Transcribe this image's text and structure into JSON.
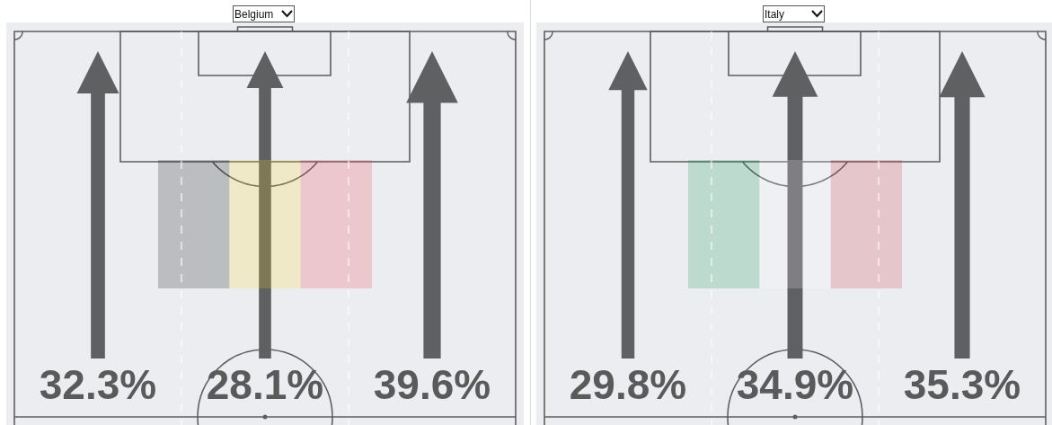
{
  "chart_data": [
    {
      "type": "other",
      "title": "Belgium",
      "categories": [
        null,
        null,
        null
      ],
      "values": [
        32.3,
        28.1,
        39.6
      ],
      "value_labels": [
        "32.3%",
        "28.1%",
        "39.6%"
      ],
      "color": "#5f6062"
    },
    {
      "type": "other",
      "title": "Italy",
      "categories": [
        null,
        null,
        null
      ],
      "values": [
        29.8,
        34.9,
        35.3
      ],
      "value_labels": [
        "29.8%",
        "34.9%",
        "35.3%"
      ],
      "color": "#5f6062"
    }
  ]
}
